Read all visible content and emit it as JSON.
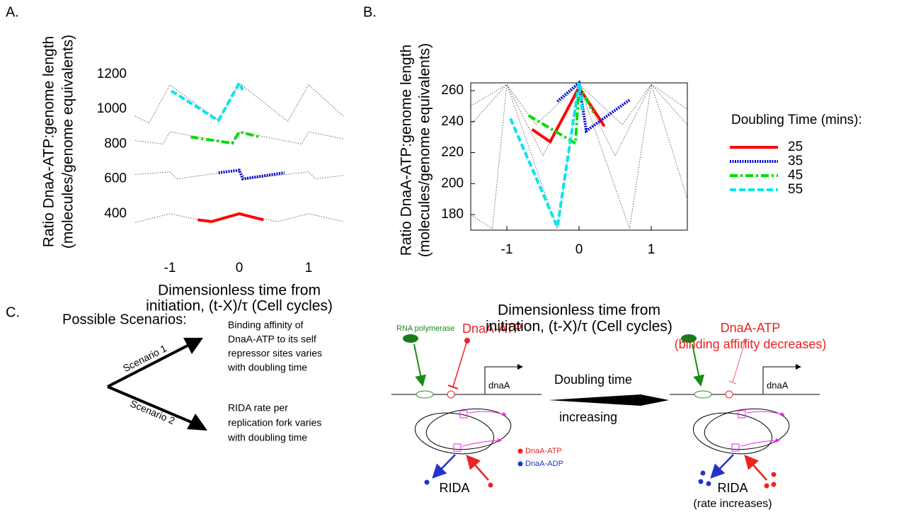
{
  "panel_labels": [
    "A.",
    "B.",
    "C."
  ],
  "chart_data": [
    {
      "type": "line",
      "frame": false,
      "xlabel": [
        "Dimensionless time from",
        "initiation, (t-X)/τ (Cell cycles)"
      ],
      "ylabel": [
        "Ratio DnaA-ATP:genome length",
        "(molecules/genome equivalents)"
      ],
      "xlim": [
        -1.5,
        1.5
      ],
      "xticks": [
        -1,
        0,
        1
      ],
      "ylim": [
        200,
        1200
      ],
      "yticks": [
        400,
        600,
        800,
        1000,
        1200
      ],
      "series": [
        {
          "color": "#555555",
          "style": "thin",
          "x": [
            -1.5,
            -1,
            -0.45,
            0,
            0.55,
            1,
            1.5
          ],
          "values": [
            350,
            400,
            355,
            400,
            355,
            400,
            355
          ]
        },
        {
          "color": "#555555",
          "style": "thin",
          "x": [
            -1.5,
            -1,
            -0.9,
            0,
            0.1,
            1,
            1.1,
            1.5
          ],
          "values": [
            625,
            640,
            600,
            650,
            600,
            640,
            600,
            620
          ]
        },
        {
          "color": "#555555",
          "style": "thin",
          "x": [
            -1.5,
            -1.1,
            -1,
            -0.1,
            0,
            0.9,
            1,
            1.5
          ],
          "values": [
            820,
            800,
            870,
            805,
            870,
            800,
            870,
            830
          ]
        },
        {
          "color": "#555555",
          "style": "thin",
          "x": [
            -1.5,
            -1.3,
            -1,
            -0.3,
            0,
            0.7,
            1,
            1.5
          ],
          "values": [
            960,
            920,
            1140,
            935,
            1150,
            930,
            1140,
            960
          ]
        },
        {
          "color": "#ff0000",
          "style": "solid",
          "x": [
            -0.6,
            -0.4,
            0,
            0.35
          ],
          "values": [
            365,
            355,
            400,
            365
          ]
        },
        {
          "color": "#0000cc",
          "style": "dotted",
          "x": [
            -0.3,
            0,
            0.05,
            0.65
          ],
          "values": [
            635,
            650,
            600,
            635
          ]
        },
        {
          "color": "#00dd00",
          "style": "dashdot",
          "x": [
            -0.7,
            -0.1,
            0,
            0.3
          ],
          "values": [
            840,
            805,
            870,
            840
          ]
        },
        {
          "color": "#00e5ee",
          "style": "dashed",
          "x": [
            -0.98,
            -0.3,
            0,
            0.05
          ],
          "values": [
            1105,
            935,
            1150,
            1110
          ]
        }
      ]
    },
    {
      "type": "line",
      "frame": true,
      "xlabel": [
        "Dimensionless time from",
        "initiation, (t-X)/τ (Cell cycles)"
      ],
      "ylabel": [
        "Ratio DnaA-ATP:genome length",
        "(molecules/genome equivalents)"
      ],
      "xlim": [
        -1.5,
        1.5
      ],
      "xticks": [
        -1,
        0,
        1
      ],
      "ylim": [
        170,
        265
      ],
      "yticks": [
        180,
        200,
        220,
        240,
        260
      ],
      "legend": {
        "title": "Doubling Time (mins):",
        "position": "right"
      },
      "series": [
        {
          "color": "#555555",
          "style": "thin",
          "x": [
            -1.5,
            -1,
            -0.3,
            0,
            0.7,
            1,
            1.5
          ],
          "values": [
            250,
            264,
            171,
            264,
            171,
            264,
            248
          ]
        },
        {
          "color": "#555555",
          "style": "thin",
          "x": [
            -1.5,
            -1,
            -0.5,
            0,
            0.5,
            1,
            1.5
          ],
          "values": [
            238,
            264,
            218,
            264,
            218,
            264,
            238
          ]
        },
        {
          "color": "#555555",
          "style": "thin",
          "x": [
            -1.5,
            -1.2,
            -1,
            -0.6,
            0,
            0.6,
            1,
            1.2,
            1.5
          ],
          "values": [
            180,
            171,
            264,
            238,
            264,
            238,
            264,
            235,
            190
          ]
        },
        {
          "name": "25",
          "color": "#ff0000",
          "style": "solid",
          "x": [
            -0.65,
            -0.4,
            0,
            0.35
          ],
          "values": [
            235,
            227,
            262,
            237
          ]
        },
        {
          "name": "35",
          "color": "#0000cc",
          "style": "dotted",
          "x": [
            -0.3,
            0,
            0.1,
            0.7
          ],
          "values": [
            253,
            265,
            234,
            254
          ]
        },
        {
          "name": "45",
          "color": "#00dd00",
          "style": "dashdot",
          "x": [
            -0.7,
            -0.05,
            0,
            0.2
          ],
          "values": [
            244,
            226,
            263,
            246
          ]
        },
        {
          "name": "55",
          "color": "#00e5ee",
          "style": "dashed",
          "x": [
            -0.95,
            -0.3,
            0,
            0.05
          ],
          "values": [
            242,
            172,
            265,
            245
          ]
        }
      ]
    }
  ],
  "diagram": {
    "heading": "Possible Scenarios:",
    "scenario_1": {
      "label": "Scenario 1",
      "text": [
        "Binding affinity of",
        "DnaA-ATP to its self",
        "repressor sites varies",
        "with doubling time"
      ]
    },
    "scenario_2": {
      "label": "Scenario 2",
      "text": [
        "RIDA rate per",
        "replication fork varies",
        "with doubling time"
      ]
    },
    "left": {
      "polymerase": "RNA polymerase",
      "dnaa_atp": "DnaA-ATP",
      "gene": "dnaA",
      "key_atp": "DnaA-ATP",
      "key_adp": "DnaA-ADP",
      "rida": "RIDA"
    },
    "transition": [
      "Doubling time",
      "increasing"
    ],
    "right": {
      "dnaa_atp": [
        "DnaA-ATP",
        "(binding affinity decreases)"
      ],
      "gene": "dnaA",
      "rida": [
        "RIDA",
        "(rate increases)"
      ]
    }
  }
}
